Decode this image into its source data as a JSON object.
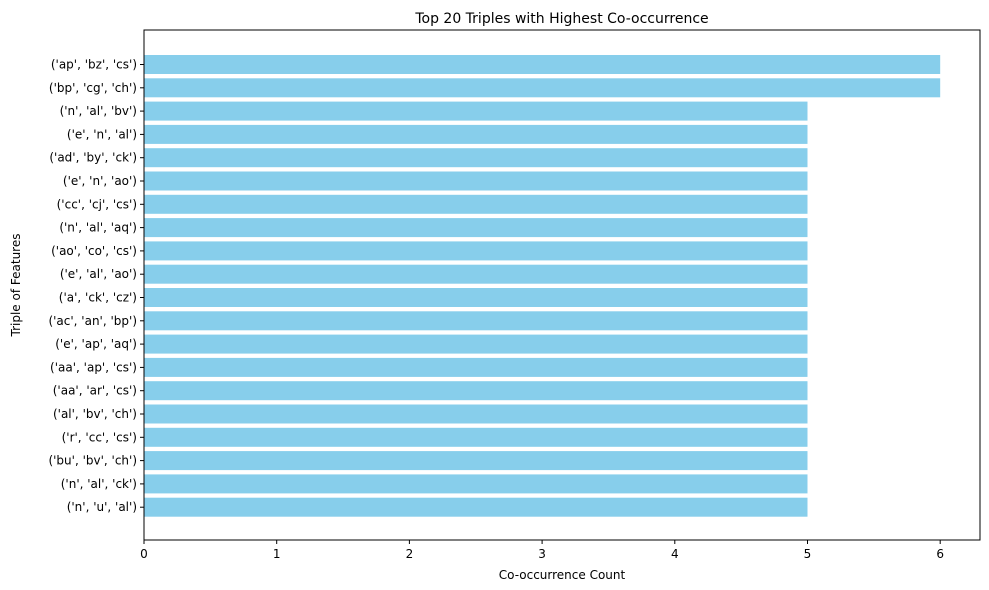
{
  "chart_data": {
    "type": "bar",
    "orientation": "horizontal",
    "title": "Top 20 Triples with Highest Co-occurrence",
    "xlabel": "Co-occurrence Count",
    "ylabel": "Triple of Features",
    "xlim": [
      0,
      6.3
    ],
    "xticks": [
      "0",
      "1",
      "2",
      "3",
      "4",
      "5",
      "6"
    ],
    "grid": false,
    "bar_color": "#87ceeb",
    "categories": [
      "('ap', 'bz', 'cs')",
      "('bp', 'cg', 'ch')",
      "('n', 'al', 'bv')",
      "('e', 'n', 'al')",
      "('ad', 'by', 'ck')",
      "('e', 'n', 'ao')",
      "('cc', 'cj', 'cs')",
      "('n', 'al', 'aq')",
      "('ao', 'co', 'cs')",
      "('e', 'al', 'ao')",
      "('a', 'ck', 'cz')",
      "('ac', 'an', 'bp')",
      "('e', 'ap', 'aq')",
      "('aa', 'ap', 'cs')",
      "('aa', 'ar', 'cs')",
      "('al', 'bv', 'ch')",
      "('r', 'cc', 'cs')",
      "('bu', 'bv', 'ch')",
      "('n', 'al', 'ck')",
      "('n', 'u', 'al')"
    ],
    "values": [
      6,
      6,
      5,
      5,
      5,
      5,
      5,
      5,
      5,
      5,
      5,
      5,
      5,
      5,
      5,
      5,
      5,
      5,
      5,
      5
    ]
  }
}
